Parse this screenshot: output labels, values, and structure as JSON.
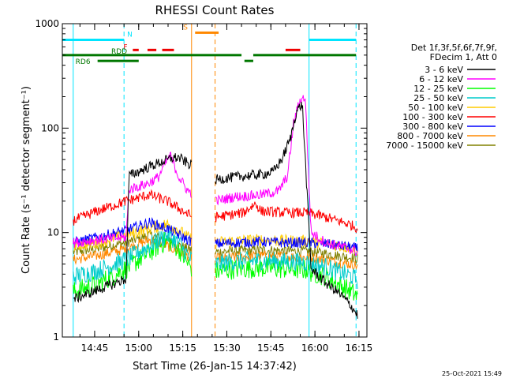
{
  "chart_data": {
    "type": "line",
    "title": "RHESSI Count Rates",
    "xlabel": "Start Time (26-Jan-15 14:37:42)",
    "ylabel": "Count Rate (s⁻¹ detector segment⁻¹)",
    "yscale": "log",
    "xlim_minutes": [
      -3.7,
      100
    ],
    "ylim": [
      1,
      1000
    ],
    "x_ticks": [
      {
        "min": 7.3,
        "label": "14:45"
      },
      {
        "min": 22.3,
        "label": "15:00"
      },
      {
        "min": 37.3,
        "label": "15:15"
      },
      {
        "min": 52.3,
        "label": "15:30"
      },
      {
        "min": 67.3,
        "label": "15:45"
      },
      {
        "min": 82.3,
        "label": "16:00"
      },
      {
        "min": 97.3,
        "label": "16:15"
      }
    ],
    "y_ticks": [
      {
        "value": 1,
        "label": "1"
      },
      {
        "value": 10,
        "label": "10"
      },
      {
        "value": 100,
        "label": "100"
      },
      {
        "value": 1000,
        "label": "1000"
      }
    ],
    "legend": {
      "header": [
        "Det 1f,3f,5f,6f,7f,9f,",
        "FDecim 1, Att 0"
      ],
      "position": "right"
    },
    "data_gaps_minutes": [
      [
        40.3,
        48.3
      ]
    ],
    "series": [
      {
        "name": "3 - 6 keV",
        "color": "#000000",
        "x": [
          0,
          8,
          18,
          19,
          27,
          34,
          36,
          39,
          40.3,
          48.3,
          55,
          64,
          68,
          71,
          74,
          76,
          78,
          81,
          86,
          90,
          94,
          97
        ],
        "values": [
          2.3,
          2.8,
          3.6,
          35,
          44,
          52,
          52,
          46,
          44,
          32,
          34,
          36,
          38,
          50,
          80,
          145,
          170,
          4.5,
          3.3,
          2.7,
          2.1,
          1.6
        ]
      },
      {
        "name": "6 - 12 keV",
        "color": "#ff00ff",
        "x": [
          0,
          8,
          18,
          19,
          23,
          26,
          29,
          31,
          33,
          36,
          39,
          40.3,
          48.3,
          55,
          64,
          70,
          73,
          75,
          77,
          79,
          81,
          86,
          90,
          94,
          97
        ],
        "values": [
          8,
          8.5,
          9,
          26,
          28,
          30,
          34,
          44,
          55,
          34,
          25,
          24,
          20,
          22,
          23,
          25,
          35,
          110,
          180,
          200,
          10,
          8,
          7.5,
          7,
          6.5
        ]
      },
      {
        "name": "12 - 25 keV",
        "color": "#00ff00",
        "x": [
          0,
          8,
          18,
          26,
          32,
          36,
          39,
          40.3,
          48.3,
          55,
          64,
          72,
          80,
          81,
          86,
          90,
          94,
          97
        ],
        "values": [
          2.7,
          3.2,
          4.5,
          6.5,
          8.5,
          7,
          5,
          4.6,
          4.2,
          4.5,
          4.6,
          4.5,
          4.4,
          4.2,
          3.8,
          3.2,
          2.8,
          2.4
        ]
      },
      {
        "name": "25 - 50 keV",
        "color": "#00cccc",
        "x": [
          0,
          8,
          18,
          26,
          32,
          36,
          39,
          40.3,
          48.3,
          55,
          64,
          72,
          80,
          81,
          86,
          90,
          94,
          97
        ],
        "values": [
          3.8,
          4.3,
          5.5,
          7.5,
          9.5,
          8,
          6,
          5.5,
          5,
          5.3,
          5.4,
          5.3,
          5.2,
          5.0,
          4.7,
          4.2,
          3.9,
          3.5
        ]
      },
      {
        "name": "50 - 100 keV",
        "color": "#ffcc00",
        "x": [
          0,
          8,
          18,
          26,
          32,
          36,
          39,
          40.3,
          48.3,
          55,
          64,
          72,
          80,
          86,
          90,
          94,
          97
        ],
        "values": [
          7.5,
          8,
          9.5,
          11,
          12,
          10.5,
          9,
          8.5,
          8,
          8.3,
          8.5,
          8.3,
          8.3,
          7.8,
          7.5,
          7.2,
          7
        ]
      },
      {
        "name": "100 - 300 keV",
        "color": "#ff0000",
        "x": [
          0,
          8,
          18,
          26,
          32,
          36,
          39,
          40.3,
          48.3,
          55,
          58,
          62,
          64,
          72,
          80,
          86,
          90,
          94,
          97
        ],
        "values": [
          13,
          16,
          20,
          23,
          20,
          17,
          15,
          14.5,
          14,
          15,
          15.5,
          19,
          16,
          15.5,
          15.5,
          14,
          13,
          12,
          11
        ]
      },
      {
        "name": "300 - 800 keV",
        "color": "#0000ff",
        "x": [
          0,
          8,
          18,
          26,
          32,
          36,
          39,
          40.3,
          48.3,
          55,
          64,
          72,
          80,
          86,
          90,
          94,
          97
        ],
        "values": [
          8,
          9,
          10.5,
          12.5,
          11,
          9.5,
          8.5,
          8.2,
          7.8,
          8,
          8.2,
          8,
          8,
          7.8,
          7.5,
          7.3,
          7
        ]
      },
      {
        "name": "800 - 7000 keV",
        "color": "#ff8800",
        "x": [
          0,
          8,
          18,
          26,
          32,
          36,
          39,
          40.3,
          48.3,
          55,
          64,
          72,
          80,
          86,
          90,
          94,
          97
        ],
        "values": [
          5.5,
          6,
          7,
          8.5,
          7.5,
          6.5,
          6,
          5.9,
          5.6,
          5.8,
          6,
          5.9,
          5.8,
          5.5,
          5.2,
          5,
          4.8
        ]
      },
      {
        "name": "7000 - 15000 keV",
        "color": "#808000",
        "x": [
          0,
          8,
          18,
          26,
          32,
          36,
          39,
          40.3,
          48.3,
          55,
          64,
          72,
          80,
          86,
          90,
          94,
          97
        ],
        "values": [
          6.5,
          7,
          8,
          9.5,
          8.5,
          7.5,
          7,
          6.8,
          6.5,
          6.7,
          6.8,
          6.7,
          6.6,
          6.3,
          6,
          5.8,
          5.6
        ]
      }
    ],
    "vertical_markers": [
      {
        "min": 0,
        "color": "#00e5ff",
        "style": "solid"
      },
      {
        "min": 17.3,
        "color": "#00e5ff",
        "style": "dashed"
      },
      {
        "min": 40.3,
        "color": "#ff8800",
        "style": "solid"
      },
      {
        "min": 48.3,
        "color": "#ff8800",
        "style": "dashed"
      },
      {
        "min": 80.3,
        "color": "#00e5ff",
        "style": "solid"
      },
      {
        "min": 96.3,
        "color": "#00e5ff",
        "style": "dashed"
      }
    ],
    "flag_bars": [
      {
        "label": "N",
        "color": "#00e5ff",
        "value": 700,
        "segments": [
          [
            -3.7,
            17.3
          ],
          [
            80.3,
            96.3
          ]
        ]
      },
      {
        "label": "S",
        "color": "#ff8800",
        "value": 820,
        "segments": [
          [
            41.5,
            49.5
          ]
        ]
      },
      {
        "label": "F",
        "color": "#ee0000",
        "value": 560,
        "segments": [
          [
            20.3,
            22.3
          ],
          [
            25.3,
            28.3
          ],
          [
            30.3,
            34.3
          ],
          [
            72.3,
            77.3
          ]
        ]
      },
      {
        "label": "RDD",
        "color": "#007700",
        "value": 500,
        "segments": [
          [
            -3.7,
            57.3
          ],
          [
            61.3,
            96.3
          ]
        ]
      },
      {
        "label": "RD6",
        "color": "#007700",
        "value": 440,
        "segments": [
          [
            8.3,
            22.3
          ],
          [
            58.3,
            61.3
          ]
        ]
      }
    ]
  },
  "timestamp": "25-Oct-2021 15:49"
}
